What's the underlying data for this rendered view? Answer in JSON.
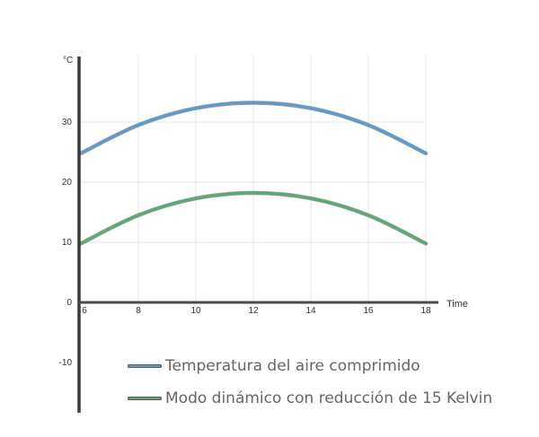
{
  "chart_data": {
    "type": "line",
    "title": "",
    "xlabel": "Time",
    "ylabel": "°C",
    "x": [
      6,
      8,
      10,
      12,
      14,
      16,
      18
    ],
    "xticks": [
      "6",
      "8",
      "10",
      "12",
      "14",
      "16",
      "18"
    ],
    "yticks": [
      "-10",
      "0",
      "10",
      "20",
      "30"
    ],
    "xlim": [
      6,
      18.4
    ],
    "ylim": [
      -18,
      41
    ],
    "grid": true,
    "legend_position": "bottom",
    "series": [
      {
        "name": "Temperatura del aire comprimido",
        "color": "#5b9bd5",
        "values": [
          24.8,
          29.5,
          32.3,
          33.2,
          32.3,
          29.5,
          24.8
        ]
      },
      {
        "name": "Modo dinámico con reducción de 15 Kelvin",
        "color": "#5aaa74",
        "values": [
          9.8,
          14.5,
          17.3,
          18.2,
          17.3,
          14.5,
          9.8
        ]
      }
    ]
  }
}
